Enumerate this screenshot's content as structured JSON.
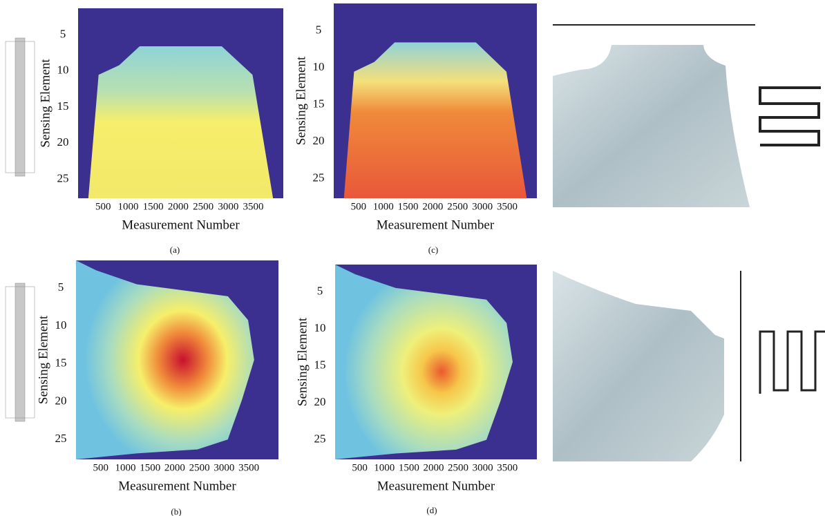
{
  "panels": [
    {
      "caption": "(a)",
      "x_label": "Measurement Number",
      "y_label": "Sensing Element",
      "xticks": [
        "500",
        "1000",
        "1500",
        "2000",
        "2500",
        "3000",
        "3500"
      ],
      "yticks": [
        "5",
        "10",
        "15",
        "20",
        "25"
      ]
    },
    {
      "caption": "(c)",
      "x_label": "Measurement Number",
      "y_label": "Sensing Element",
      "xticks": [
        "500",
        "1000",
        "1500",
        "2000",
        "2500",
        "3000",
        "3500"
      ],
      "yticks": [
        "5",
        "10",
        "15",
        "20",
        "25"
      ]
    },
    {
      "caption": "(b)",
      "x_label": "Measurement Number",
      "y_label": "Sensing Element",
      "xticks": [
        "500",
        "1000",
        "1500",
        "2000",
        "2500",
        "3000",
        "3500"
      ],
      "yticks": [
        "5",
        "10",
        "15",
        "20",
        "25"
      ]
    },
    {
      "caption": "(d)",
      "x_label": "Measurement Number",
      "y_label": "Sensing Element",
      "xticks": [
        "500",
        "1000",
        "1500",
        "2000",
        "2500",
        "3000",
        "3500"
      ],
      "yticks": [
        "5",
        "10",
        "15",
        "20",
        "25"
      ]
    }
  ]
}
